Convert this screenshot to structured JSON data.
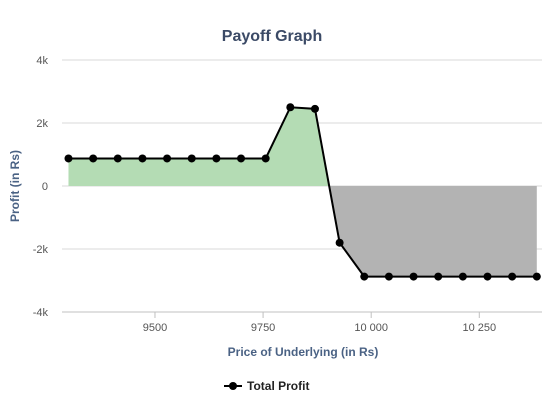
{
  "chart_data": {
    "type": "area",
    "title": "Payoff Graph",
    "xlabel": "Price of Underlying (in Rs)",
    "ylabel": "Profit (in Rs)",
    "xlim": [
      9285,
      10395
    ],
    "ylim": [
      -4000,
      4000
    ],
    "x_ticks": [
      {
        "value": 9500,
        "label": "9500"
      },
      {
        "value": 9750,
        "label": "9750"
      },
      {
        "value": 10000,
        "label": "10 000"
      },
      {
        "value": 10250,
        "label": "10 250"
      }
    ],
    "y_ticks": [
      {
        "value": -4000,
        "label": "-4k"
      },
      {
        "value": -2000,
        "label": "-2k"
      },
      {
        "value": 0,
        "label": "0"
      },
      {
        "value": 2000,
        "label": "2k"
      },
      {
        "value": 4000,
        "label": "4k"
      }
    ],
    "grid": true,
    "legend_position": "bottom-center",
    "series": [
      {
        "name": "Total Profit",
        "color": "#000000",
        "positive_fill": "#b4dcb4",
        "negative_fill": "#b3b3b3",
        "x": [
          9300,
          9357,
          9414,
          9471,
          9528,
          9585,
          9642,
          9699,
          9756,
          9813,
          9870,
          9927,
          9984,
          10041,
          10098,
          10155,
          10212,
          10269,
          10326,
          10383
        ],
        "y": [
          875,
          875,
          875,
          875,
          875,
          875,
          875,
          875,
          875,
          2500,
          2450,
          -1800,
          -2875,
          -2875,
          -2875,
          -2875,
          -2875,
          -2875,
          -2875,
          -2875
        ]
      }
    ]
  }
}
